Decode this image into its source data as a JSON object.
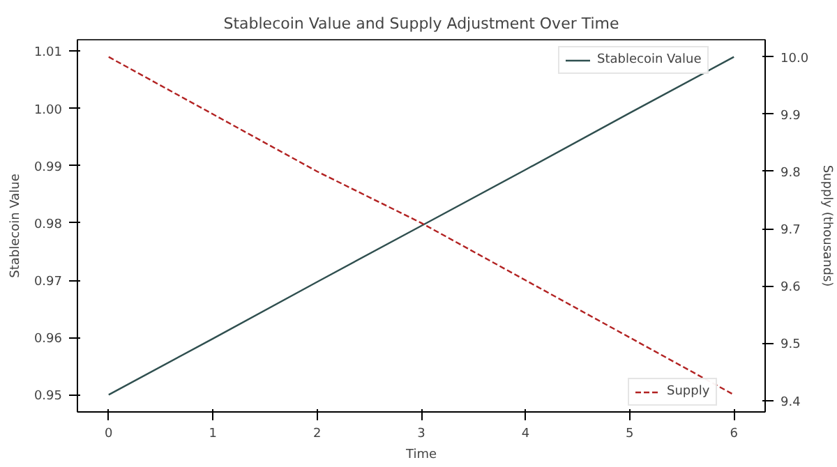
{
  "chart_data": {
    "type": "line",
    "title": "Stablecoin Value and Supply Adjustment Over Time",
    "xlabel": "Time",
    "ylabel": "Stablecoin Value",
    "y2label": "Supply (thousands)",
    "x": [
      0,
      1,
      2,
      3,
      4,
      5,
      6
    ],
    "series": [
      {
        "name": "Stablecoin Value",
        "color": "#2f4f4f",
        "line_style": "solid",
        "values": [
          0.95,
          0.9598,
          0.9697,
          0.9795,
          0.9893,
          0.9992,
          1.009
        ]
      },
      {
        "name": "Supply",
        "color": "#b22222",
        "line_style": "dashed",
        "axis": "y2",
        "values": [
          10.0,
          9.9,
          9.8,
          9.71,
          9.61,
          9.51,
          9.41
        ]
      }
    ],
    "xlim": [
      -0.3,
      6.3
    ],
    "xticks": [
      0,
      1,
      2,
      3,
      4,
      5,
      6
    ],
    "ylim": [
      0.947,
      1.012
    ],
    "yticks": [
      {
        "value": 0.95,
        "label": "0.95"
      },
      {
        "value": 0.96,
        "label": "0.96"
      },
      {
        "value": 0.97,
        "label": "0.97"
      },
      {
        "value": 0.98,
        "label": "0.98"
      },
      {
        "value": 0.99,
        "label": "0.99"
      },
      {
        "value": 1.0,
        "label": "1.00"
      },
      {
        "value": 1.01,
        "label": "1.01"
      }
    ],
    "y2lim": [
      9.38,
      10.03
    ],
    "y2ticks": [
      {
        "value": 9.4,
        "label": "9.4"
      },
      {
        "value": 9.5,
        "label": "9.5"
      },
      {
        "value": 9.6,
        "label": "9.6"
      },
      {
        "value": 9.7,
        "label": "9.7"
      },
      {
        "value": 9.8,
        "label": "9.8"
      },
      {
        "value": 9.9,
        "label": "9.9"
      },
      {
        "value": 10.0,
        "label": "10.0"
      }
    ],
    "grid": false,
    "legend": "right"
  }
}
